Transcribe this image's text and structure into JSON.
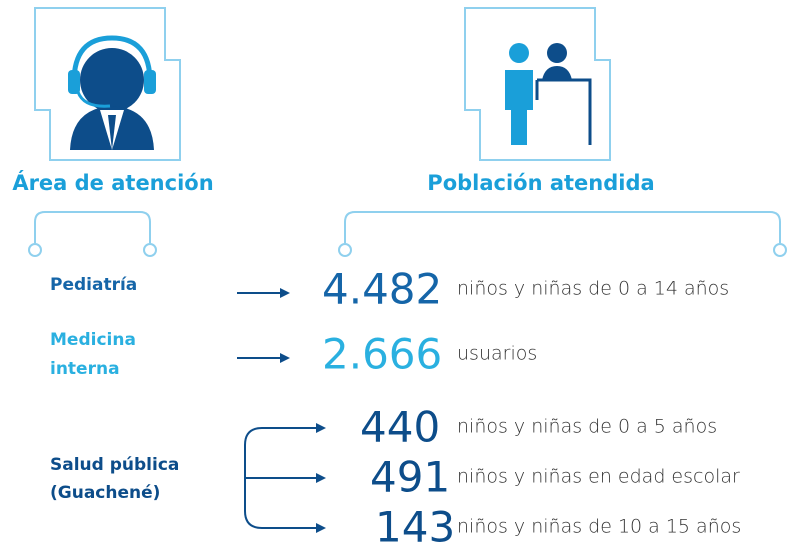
{
  "headers": {
    "area": "Área de atención",
    "population": "Población atendida"
  },
  "rows": [
    {
      "area": [
        "Pediatría"
      ],
      "groups": [
        {
          "number": "4.482",
          "description": "niños y niñas de 0 a 14 años"
        }
      ]
    },
    {
      "area": [
        "Medicina",
        "interna"
      ],
      "groups": [
        {
          "number": "2.666",
          "description": "usuarios"
        }
      ]
    },
    {
      "area": [
        "Salud pública",
        "(Guachené)"
      ],
      "groups": [
        {
          "number": "440",
          "description": "niños y niñas de 0 a 5 años"
        },
        {
          "number": "491",
          "description": "niños y niñas en edad escolar"
        },
        {
          "number": "143",
          "description": "niños y niñas de 10 a 15 años"
        }
      ]
    }
  ]
}
